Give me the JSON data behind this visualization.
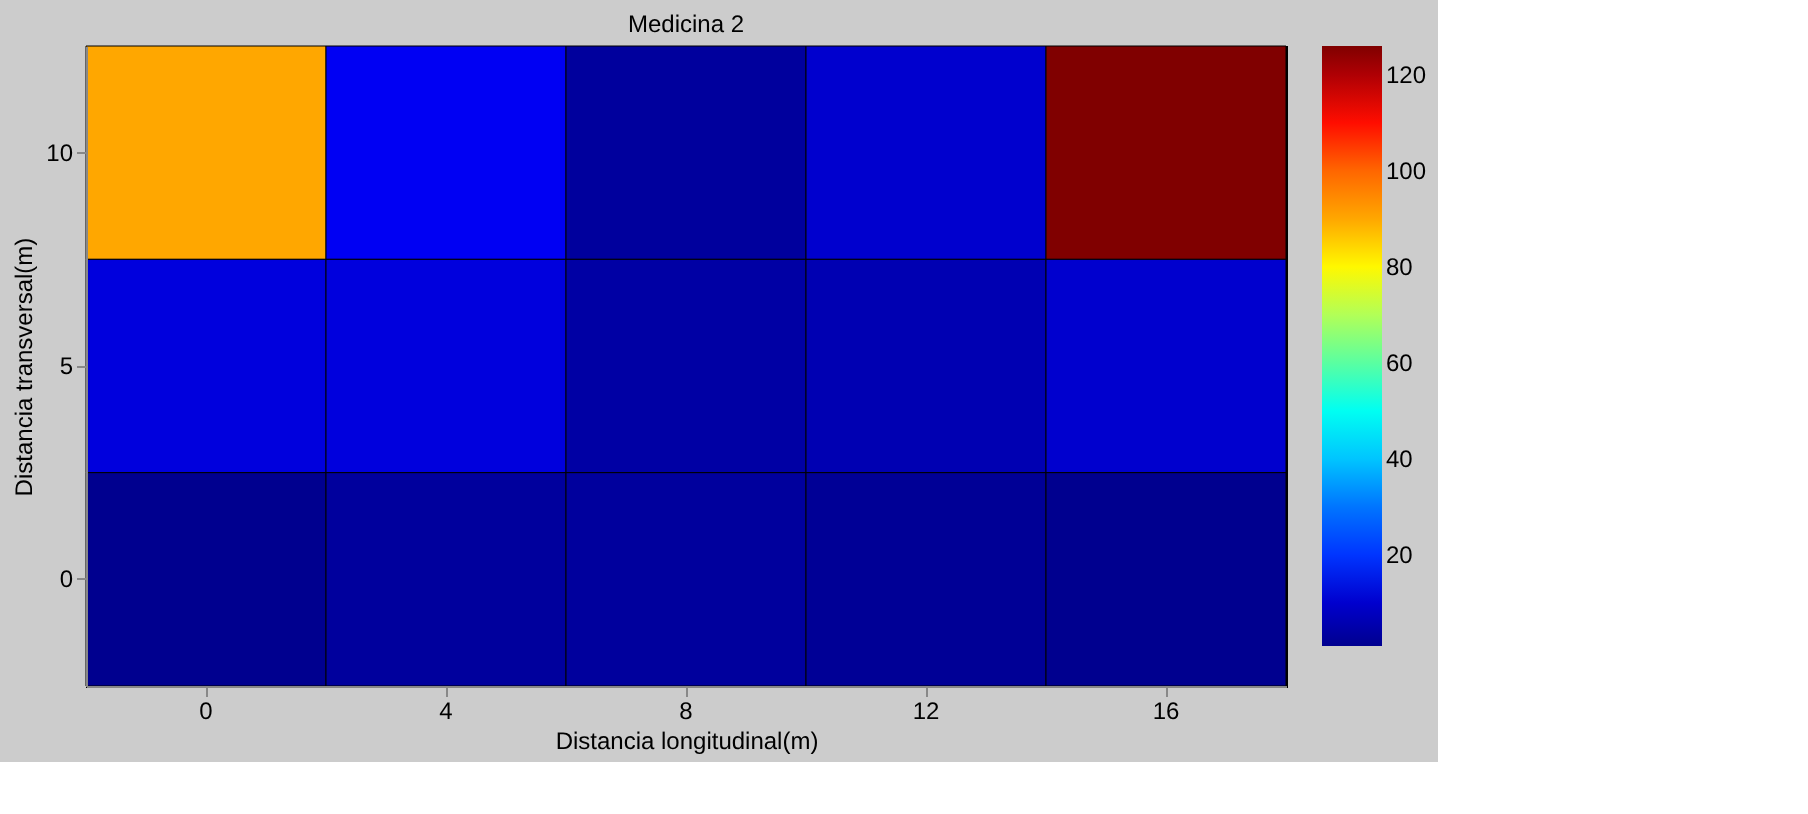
{
  "chart_data": {
    "type": "heatmap",
    "title": "Medicina 2",
    "xlabel": "Distancia longitudinal(m)",
    "ylabel": "Distancia transversal(m)",
    "categories": [
      "0",
      "4",
      "8",
      "12",
      "16"
    ],
    "y_categories": [
      "10",
      "5",
      "0"
    ],
    "cells": [
      [
        90,
        15,
        3,
        10,
        126
      ],
      [
        12,
        12,
        4,
        6,
        10
      ],
      [
        1,
        3,
        3,
        2,
        1
      ]
    ],
    "clim": [
      1,
      126
    ],
    "cticks": [
      20,
      40,
      60,
      80,
      100,
      120
    ]
  }
}
